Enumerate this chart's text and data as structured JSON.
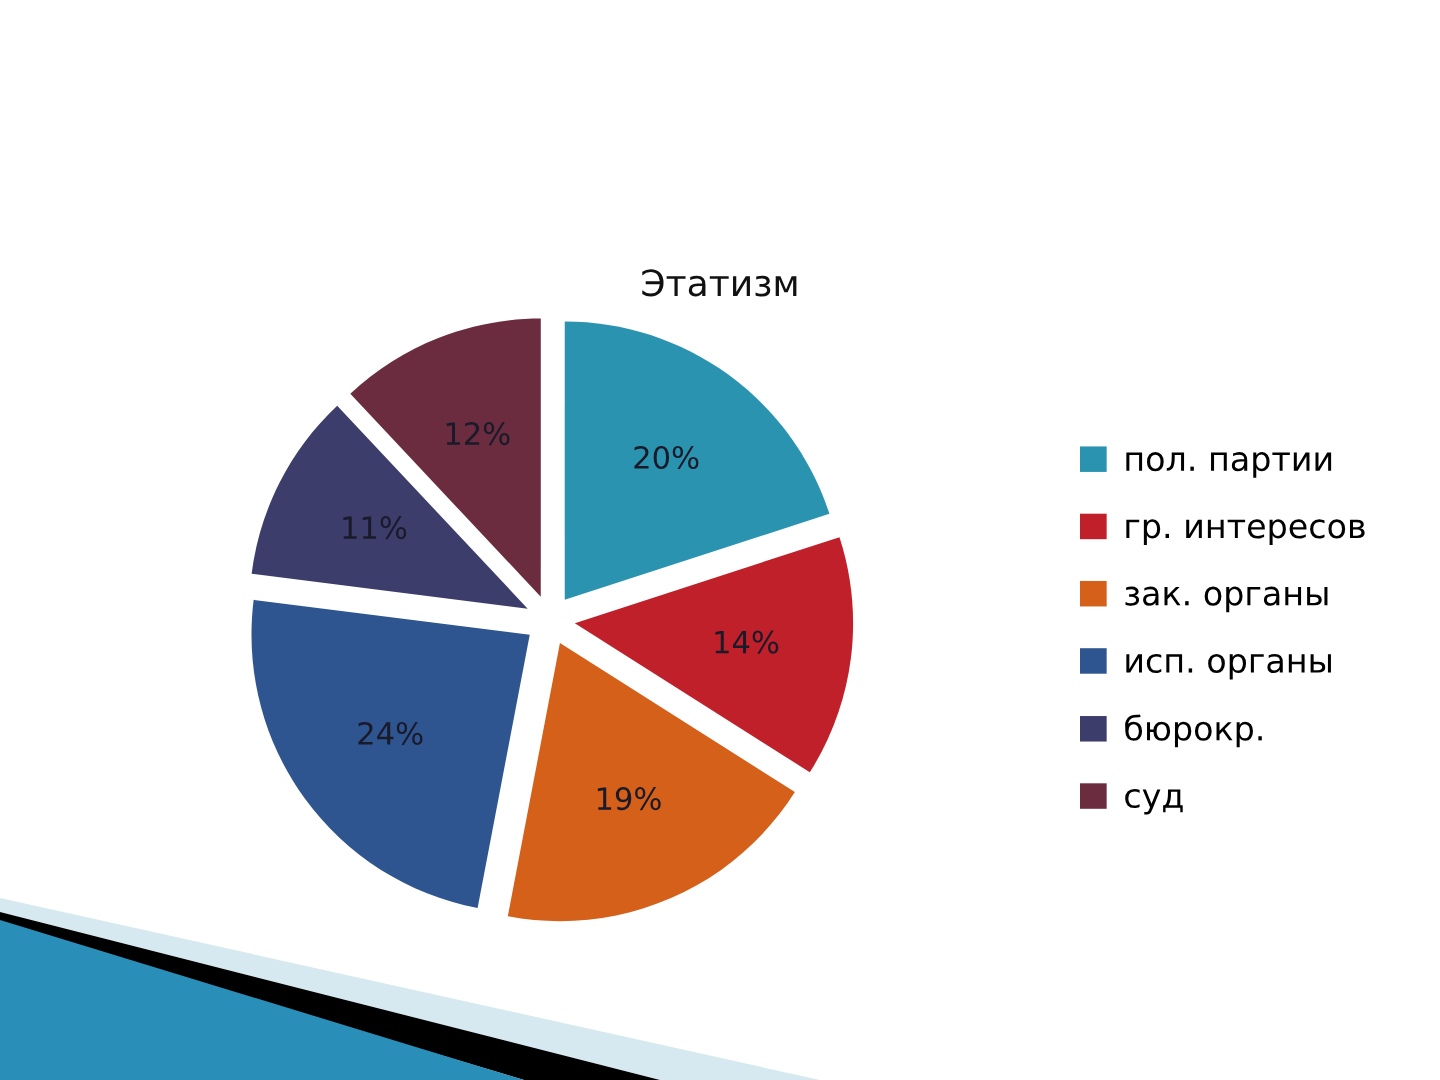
{
  "chart_data": {
    "type": "pie",
    "title": "Этатизм",
    "categories": [
      "пол. партии",
      "гр. интересов",
      "зак. органы",
      "исп. органы",
      "бюрокр.",
      "суд"
    ],
    "values": [
      20,
      14,
      19,
      24,
      11,
      12
    ],
    "value_labels": [
      "20%",
      "14%",
      "19%",
      "24%",
      "11%",
      "12%"
    ],
    "colors": [
      "#2a93b0",
      "#c0202a",
      "#d4601a",
      "#2e5590",
      "#3c3d6b",
      "#6b2c3f"
    ],
    "legend": "right"
  }
}
